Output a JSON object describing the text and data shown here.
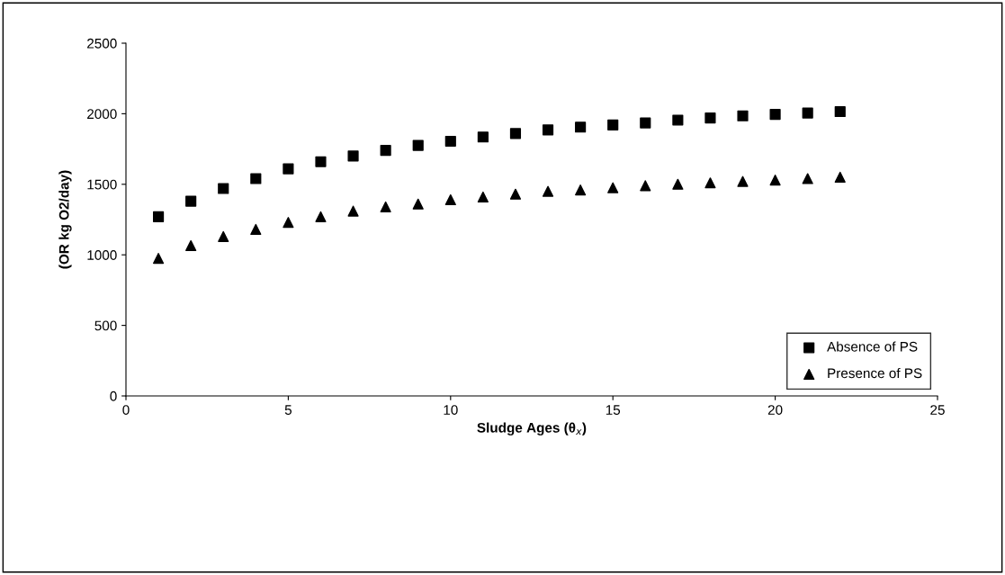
{
  "chart_data": {
    "type": "scatter",
    "xlabel": "Sludge Ages (θ$_{x}$)",
    "ylabel": "(OR kg O2/day)",
    "x": [
      1,
      2,
      3,
      4,
      5,
      6,
      7,
      8,
      9,
      10,
      11,
      12,
      13,
      14,
      15,
      16,
      17,
      18,
      19,
      20,
      21,
      22
    ],
    "series": [
      {
        "name": "Absence of PS",
        "color": "#000000",
        "marker": "square",
        "values": [
          1270,
          1380,
          1470,
          1540,
          1610,
          1660,
          1700,
          1740,
          1775,
          1805,
          1835,
          1860,
          1885,
          1905,
          1920,
          1935,
          1955,
          1970,
          1985,
          1995,
          2005,
          2015
        ]
      },
      {
        "name": "Presence of PS",
        "color": "#000000",
        "marker": "triangle",
        "values": [
          975,
          1065,
          1130,
          1180,
          1230,
          1270,
          1310,
          1340,
          1360,
          1390,
          1410,
          1430,
          1450,
          1460,
          1475,
          1490,
          1500,
          1510,
          1520,
          1530,
          1540,
          1550
        ]
      }
    ],
    "xlim": [
      0,
      25
    ],
    "xticks": [
      0,
      5,
      10,
      15,
      20,
      25
    ],
    "ylim": [
      0,
      2500
    ],
    "yticks": [
      0,
      500,
      1000,
      1500,
      2000,
      2500
    ],
    "grid": false,
    "legend": "bottom right"
  }
}
